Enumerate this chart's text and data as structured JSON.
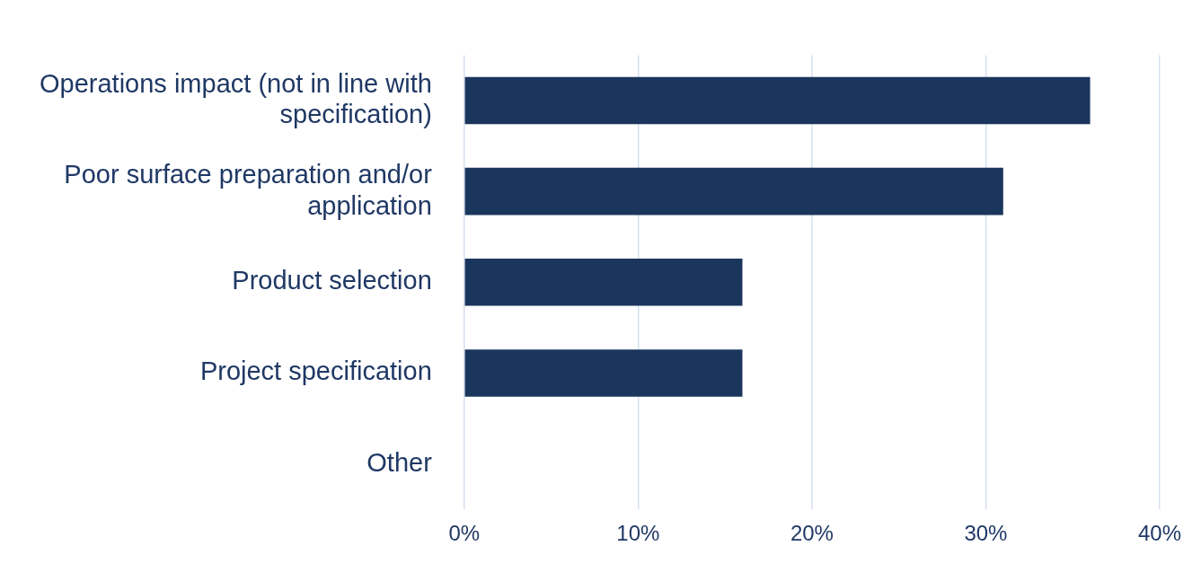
{
  "chart_data": {
    "type": "bar",
    "orientation": "horizontal",
    "categories": [
      "Operations impact (not in line with specification)",
      "Poor surface preparation and/or application",
      "Product selection",
      "Project specification",
      "Other"
    ],
    "values": [
      36,
      31,
      16,
      16,
      0
    ],
    "color": "#1b365d",
    "xlim": [
      0,
      40
    ],
    "xticks": [
      {
        "value": 0,
        "label": "0%"
      },
      {
        "value": 10,
        "label": "10%"
      },
      {
        "value": 20,
        "label": "20%"
      },
      {
        "value": 30,
        "label": "30%"
      },
      {
        "value": 40,
        "label": "40%"
      }
    ],
    "grid": "x"
  }
}
